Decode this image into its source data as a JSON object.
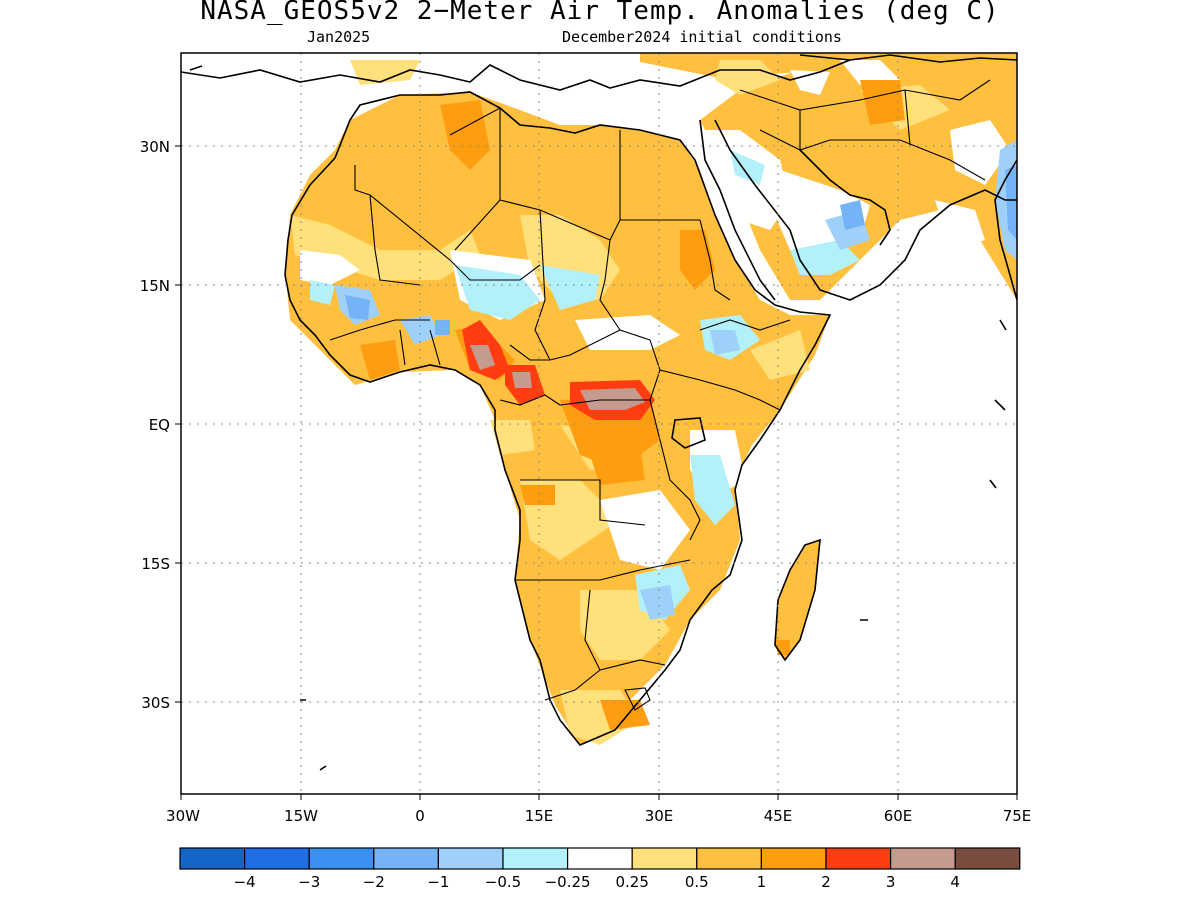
{
  "header": {
    "title": "NASA_GEOS5v2 2−Meter Air Temp. Anomalies (deg C)",
    "valid_month": "Jan2025",
    "init_conditions": "December2024 initial conditions"
  },
  "map": {
    "lon_range": [
      -30,
      75
    ],
    "lat_range": [
      -40,
      40
    ],
    "grid_lines": "dotted",
    "lat_ticks": [
      {
        "value": 30,
        "label": "30N"
      },
      {
        "value": 15,
        "label": "15N"
      },
      {
        "value": 0,
        "label": "EQ"
      },
      {
        "value": -15,
        "label": "15S"
      },
      {
        "value": -30,
        "label": "30S"
      }
    ],
    "lon_ticks": [
      {
        "value": -30,
        "label": "30W"
      },
      {
        "value": -15,
        "label": "15W"
      },
      {
        "value": 0,
        "label": "0"
      },
      {
        "value": 15,
        "label": "15E"
      },
      {
        "value": 30,
        "label": "30E"
      },
      {
        "value": 45,
        "label": "45E"
      },
      {
        "value": 60,
        "label": "60E"
      },
      {
        "value": 75,
        "label": "75E"
      }
    ]
  },
  "colorbar": {
    "colors": [
      "#1565c8",
      "#1f6ee6",
      "#3b8ff0",
      "#74b3f5",
      "#9fd0fa",
      "#b2f0fa",
      "#ffffff",
      "#ffe07a",
      "#ffbf3f",
      "#ff9d10",
      "#ff3d10",
      "#c49b8e",
      "#7a4c3f"
    ],
    "labels": [
      "−4",
      "−3",
      "−2",
      "−1",
      "−0.5",
      "−0.25",
      "0.25",
      "0.5",
      "1",
      "2",
      "3",
      "4"
    ]
  }
}
